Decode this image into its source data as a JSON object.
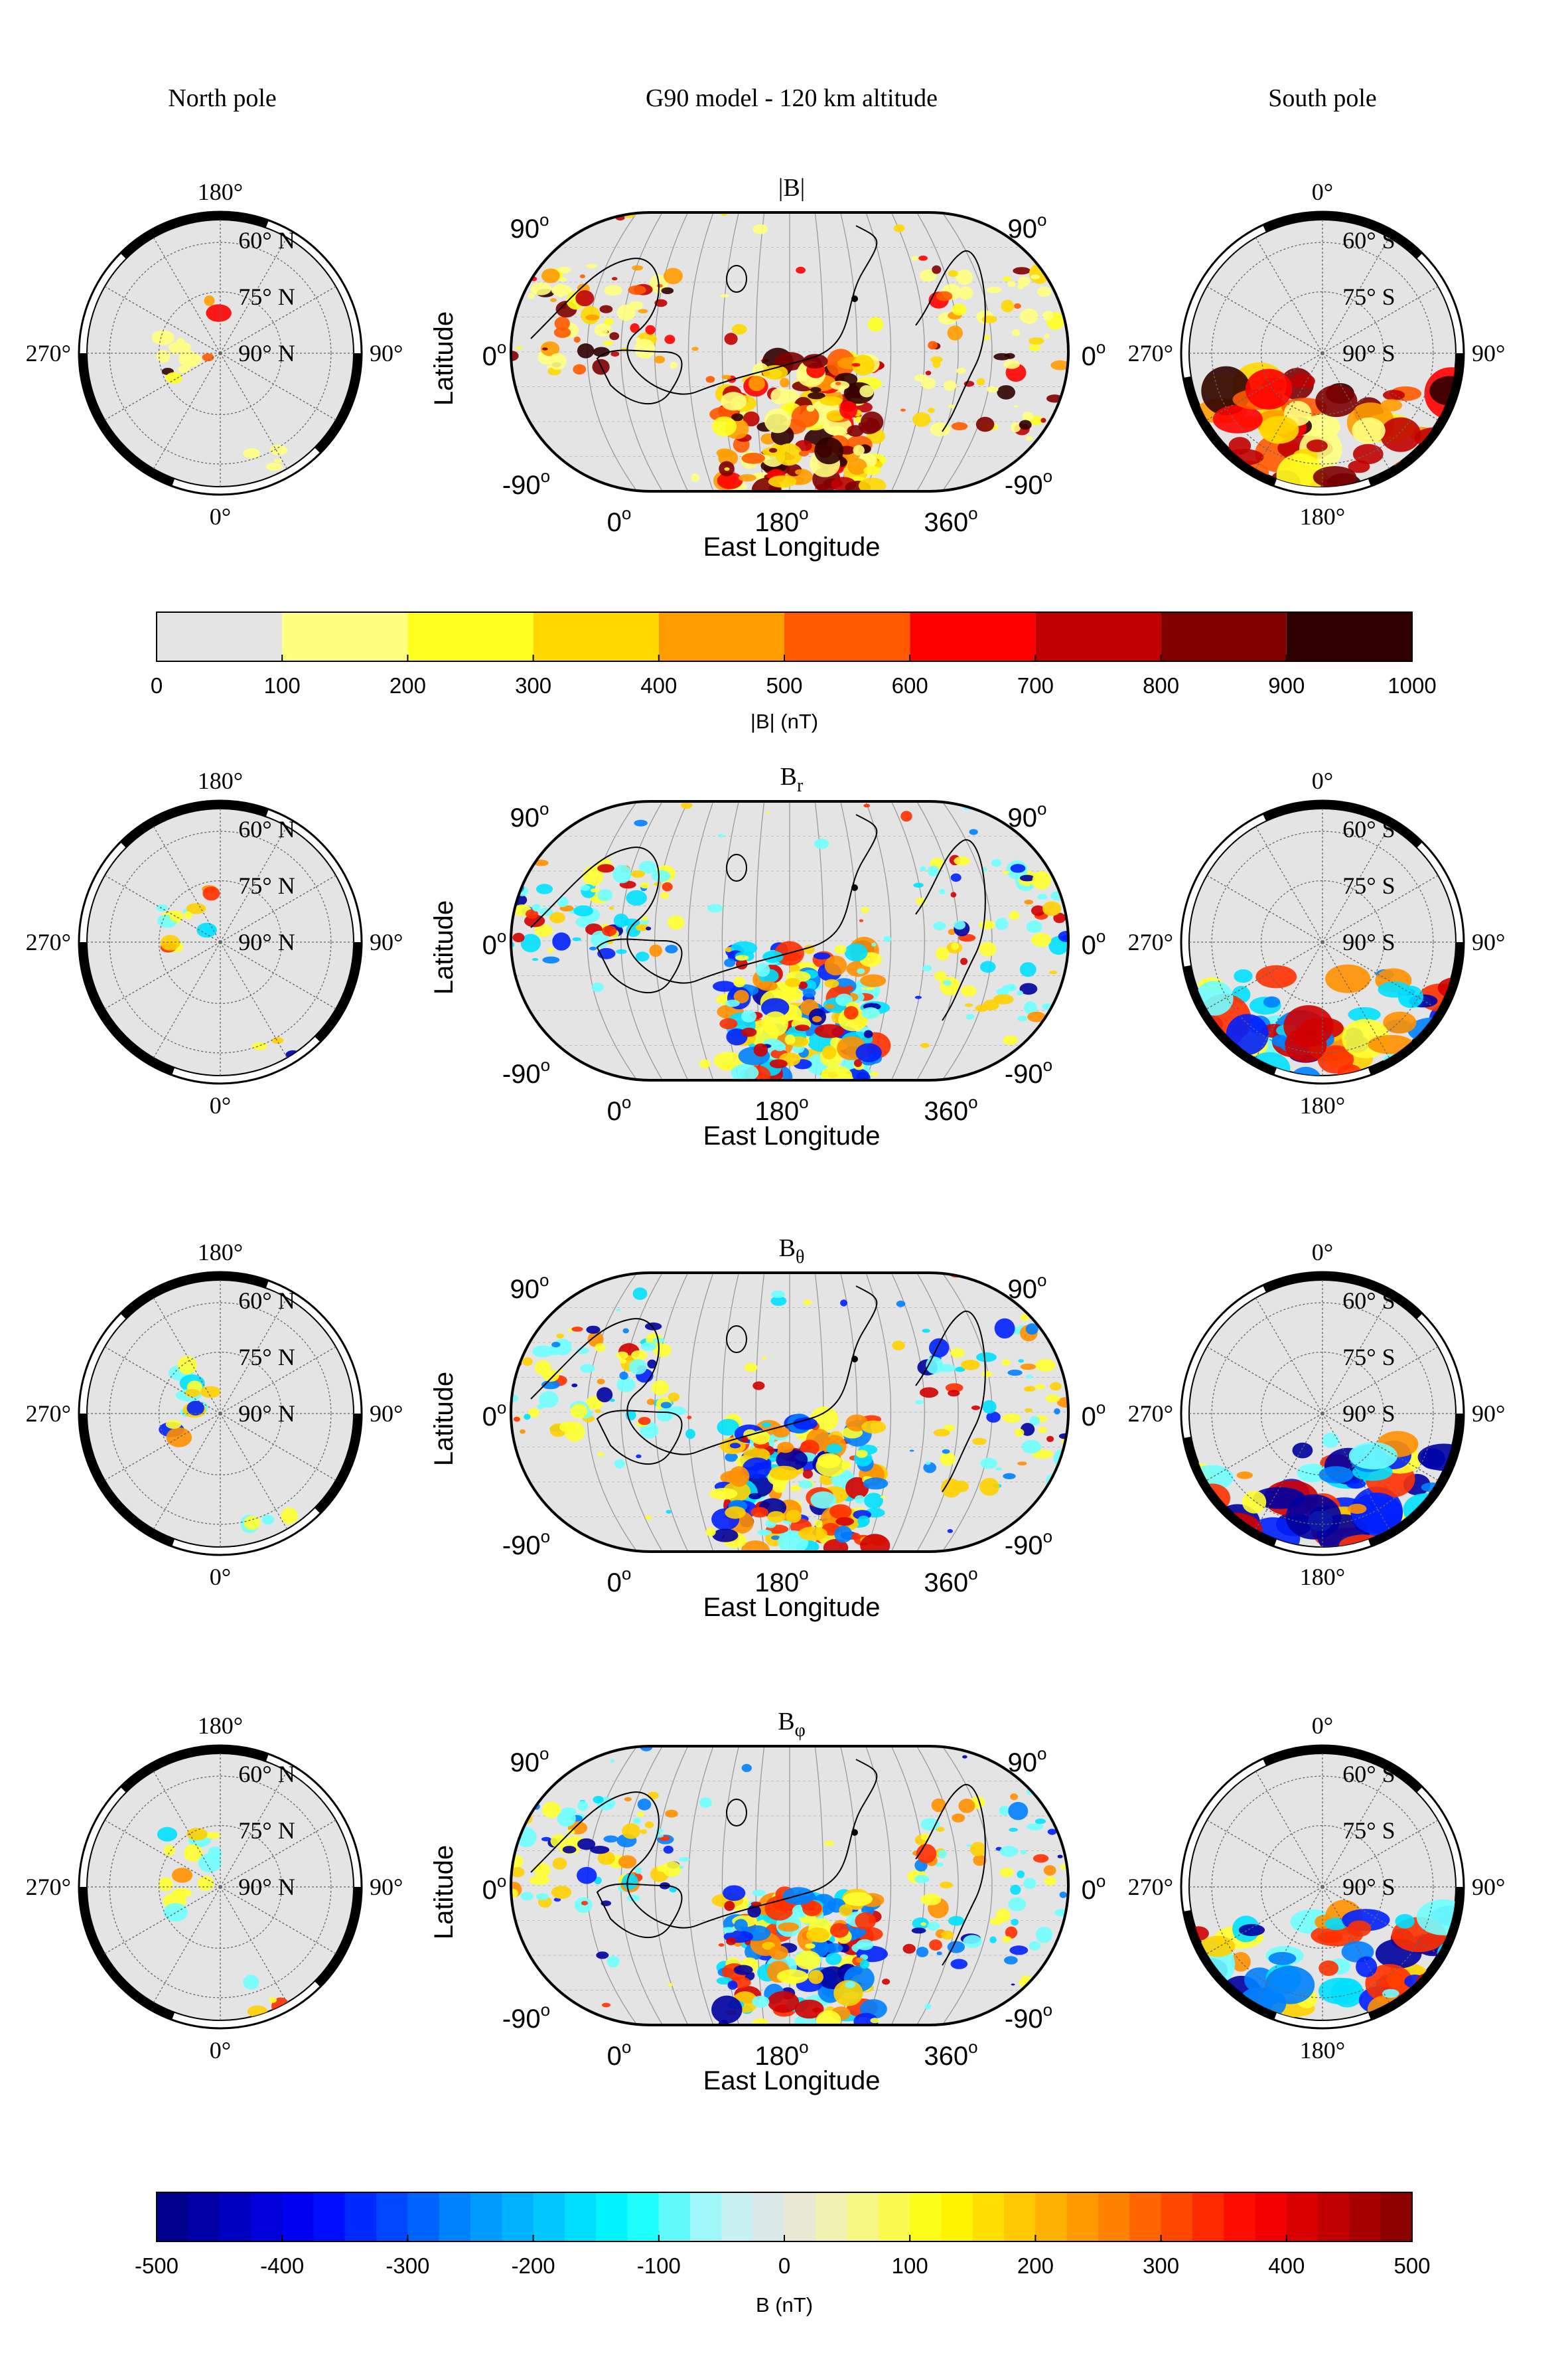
{
  "figure": {
    "header_left": "North pole",
    "header_center": "G90 model - 120 km altitude",
    "header_right": "South pole"
  },
  "map_axes": {
    "ylabel": "Latitude",
    "xlabel": "East Longitude",
    "lon_ticks": [
      "0",
      "180",
      "360"
    ],
    "lat_ticks": [
      "90",
      "0",
      "-90"
    ],
    "deg_symbol": "o"
  },
  "north_polar": {
    "top": "180°",
    "bottom": "0°",
    "left": "270°",
    "right": "90°",
    "rings": [
      "60° N",
      "75° N",
      "90° N"
    ]
  },
  "south_polar": {
    "top": "0°",
    "bottom": "180°",
    "left": "270°",
    "right": "90°",
    "rings": [
      "60° S",
      "75° S",
      "90° S"
    ]
  },
  "colors": {
    "background_field": "#e4e4e4",
    "frame": "#000000",
    "coastline": "#000000"
  },
  "chart_data": [
    {
      "type": "heatmap",
      "title": "|B|",
      "component": "B_total",
      "map_projection": "equal-area global with north and south polar views",
      "xlabel": "East Longitude",
      "ylabel": "Latitude",
      "xlim": [
        0,
        360
      ],
      "ylim": [
        -90,
        90
      ],
      "anomaly_region": "strongest field in southern highlands, longitude ~150-210",
      "colorbar": {
        "label": "|B| (nT)",
        "range": [
          0,
          1000
        ],
        "ticks": [
          0,
          100,
          200,
          300,
          400,
          500,
          600,
          700,
          800,
          900,
          1000
        ],
        "bins": [
          {
            "from": 0,
            "to": 100,
            "color": "#e4e4e4"
          },
          {
            "from": 100,
            "to": 200,
            "color": "#ffff80"
          },
          {
            "from": 200,
            "to": 300,
            "color": "#ffff20"
          },
          {
            "from": 300,
            "to": 400,
            "color": "#ffd800"
          },
          {
            "from": 400,
            "to": 500,
            "color": "#ff9c00"
          },
          {
            "from": 500,
            "to": 600,
            "color": "#ff5a00"
          },
          {
            "from": 600,
            "to": 700,
            "color": "#ff0000"
          },
          {
            "from": 700,
            "to": 800,
            "color": "#c00000"
          },
          {
            "from": 800,
            "to": 900,
            "color": "#800000"
          },
          {
            "from": 900,
            "to": 1000,
            "color": "#300000"
          }
        ]
      }
    },
    {
      "type": "heatmap",
      "title_base": "B",
      "title_sub": "r",
      "component": "radial",
      "xlabel": "East Longitude",
      "ylabel": "Latitude",
      "xlim": [
        0,
        360
      ],
      "ylim": [
        -90,
        90
      ]
    },
    {
      "type": "heatmap",
      "title_base": "B",
      "title_sub": "θ",
      "component": "theta",
      "xlabel": "East Longitude",
      "ylabel": "Latitude",
      "xlim": [
        0,
        360
      ],
      "ylim": [
        -90,
        90
      ]
    },
    {
      "type": "heatmap",
      "title_base": "B",
      "title_sub": "φ",
      "component": "phi",
      "xlabel": "East Longitude",
      "ylabel": "Latitude",
      "xlim": [
        0,
        360
      ],
      "ylim": [
        -90,
        90
      ],
      "colorbar": {
        "label": "B (nT)",
        "range": [
          -500,
          500
        ],
        "ticks": [
          -500,
          -400,
          -300,
          -200,
          -100,
          0,
          100,
          200,
          300,
          400,
          500
        ],
        "colormap": "diverging blue-cyan-grey-yellow-red",
        "stops": [
          {
            "value": -500,
            "color": "#000080"
          },
          {
            "value": -375,
            "color": "#0000ff"
          },
          {
            "value": -250,
            "color": "#0090ff"
          },
          {
            "value": -125,
            "color": "#00ffff"
          },
          {
            "value": -50,
            "color": "#bff5f5"
          },
          {
            "value": 0,
            "color": "#e4e4e4"
          },
          {
            "value": 50,
            "color": "#f5f5a0"
          },
          {
            "value": 125,
            "color": "#ffff00"
          },
          {
            "value": 250,
            "color": "#ff9000"
          },
          {
            "value": 375,
            "color": "#ff0000"
          },
          {
            "value": 500,
            "color": "#800000"
          }
        ]
      }
    }
  ]
}
